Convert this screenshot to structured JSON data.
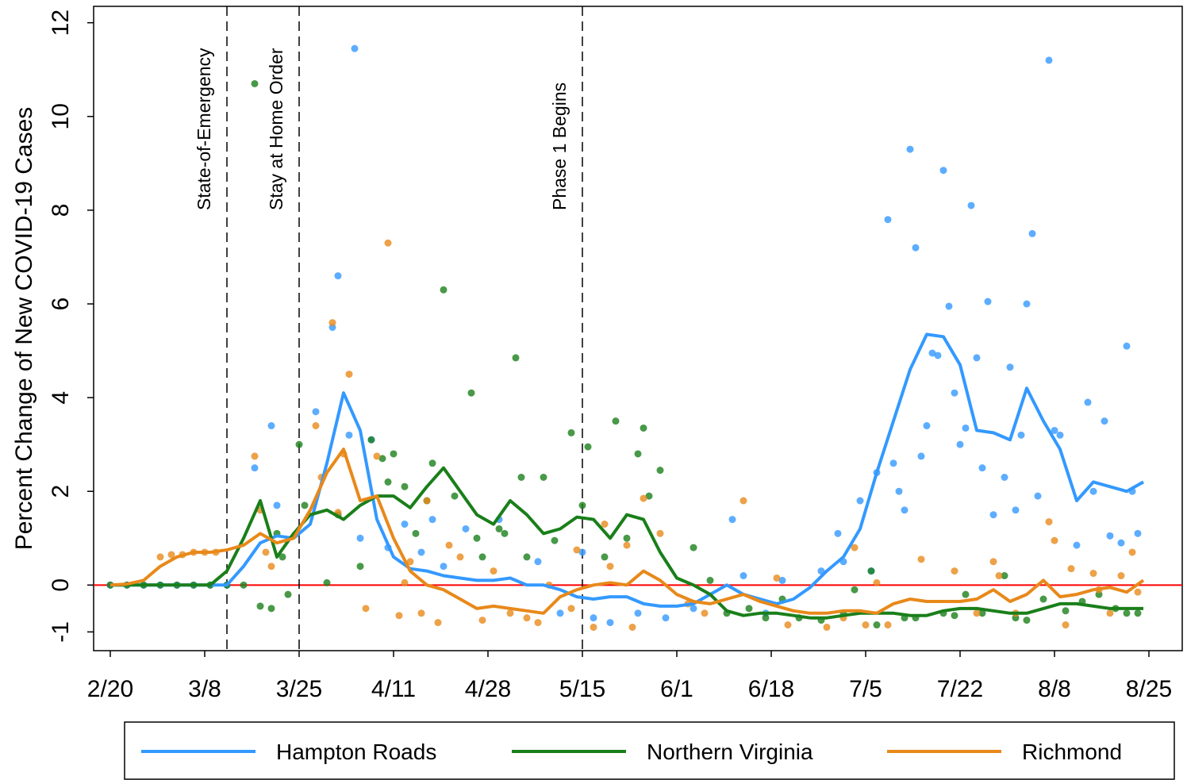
{
  "chart_data": {
    "type": "line_scatter",
    "y_label": "Percent Change of New COVID-19 Cases",
    "xlim": [
      "2/17",
      "8/31"
    ],
    "xticks": [
      "2/20",
      "3/8",
      "3/25",
      "4/11",
      "4/28",
      "5/15",
      "6/1",
      "6/18",
      "7/5",
      "7/22",
      "8/8",
      "8/25"
    ],
    "ylim": [
      -1.4,
      12.35
    ],
    "yticks": [
      -1,
      0,
      2,
      4,
      6,
      8,
      10,
      12
    ],
    "reference_line": {
      "value": 0,
      "color": "#ff0000"
    },
    "events": [
      {
        "x": "3/12",
        "label": "State-of-Emergency"
      },
      {
        "x": "3/25",
        "label": "Stay at Home Order"
      },
      {
        "x": "5/15",
        "label": "Phase 1 Begins"
      }
    ],
    "x": [
      "2/20",
      "2/23",
      "2/26",
      "2/29",
      "3/3",
      "3/6",
      "3/9",
      "3/12",
      "3/15",
      "3/18",
      "3/21",
      "3/24",
      "3/27",
      "3/30",
      "4/2",
      "4/5",
      "4/8",
      "4/11",
      "4/14",
      "4/17",
      "4/20",
      "4/23",
      "4/26",
      "4/29",
      "5/2",
      "5/5",
      "5/8",
      "5/11",
      "5/14",
      "5/17",
      "5/20",
      "5/23",
      "5/26",
      "5/29",
      "6/1",
      "6/4",
      "6/7",
      "6/10",
      "6/13",
      "6/16",
      "6/19",
      "6/22",
      "6/25",
      "6/28",
      "7/1",
      "7/4",
      "7/7",
      "7/10",
      "7/13",
      "7/16",
      "7/19",
      "7/22",
      "7/25",
      "7/28",
      "7/31",
      "8/3",
      "8/6",
      "8/9",
      "8/12",
      "8/15",
      "8/18",
      "8/21",
      "8/24"
    ],
    "series": [
      {
        "name": "Hampton Roads",
        "color": "#3399ff",
        "values": [
          0,
          0,
          0,
          0,
          0,
          0,
          0,
          0,
          0.4,
          0.9,
          1.05,
          1.0,
          1.3,
          2.6,
          4.1,
          3.3,
          1.4,
          0.6,
          0.35,
          0.3,
          0.2,
          0.15,
          0.1,
          0.1,
          0.15,
          0,
          0,
          -0.1,
          -0.25,
          -0.3,
          -0.25,
          -0.25,
          -0.4,
          -0.45,
          -0.45,
          -0.4,
          -0.2,
          0,
          -0.2,
          -0.3,
          -0.4,
          -0.3,
          -0.05,
          0.3,
          0.6,
          1.2,
          2.4,
          3.5,
          4.6,
          5.35,
          5.3,
          4.7,
          3.3,
          3.25,
          3.1,
          4.2,
          3.5,
          2.9,
          1.8,
          2.2,
          2.1,
          2.0,
          2.2
        ],
        "scatter": {
          "x": [
            "2/20",
            "2/23",
            "2/26",
            "2/29",
            "3/3",
            "3/6",
            "3/9",
            "3/12",
            "3/17",
            "3/20",
            "3/21",
            "3/28",
            "3/31",
            "4/1",
            "4/3",
            "4/4",
            "4/5",
            "4/7",
            "4/10",
            "4/13",
            "4/16",
            "4/18",
            "4/20",
            "4/24",
            "4/30",
            "5/7",
            "5/11",
            "5/15",
            "5/17",
            "5/20",
            "5/25",
            "5/30",
            "6/4",
            "6/11",
            "6/13",
            "6/17",
            "6/20",
            "6/27",
            "6/30",
            "7/1",
            "7/4",
            "7/6",
            "7/7",
            "7/9",
            "7/10",
            "7/11",
            "7/12",
            "7/13",
            "7/14",
            "7/15",
            "7/16",
            "7/17",
            "7/18",
            "7/19",
            "7/20",
            "7/21",
            "7/22",
            "7/23",
            "7/24",
            "7/25",
            "7/26",
            "7/27",
            "7/28",
            "7/30",
            "7/31",
            "8/1",
            "8/2",
            "8/3",
            "8/4",
            "8/5",
            "8/7",
            "8/8",
            "8/9",
            "8/12",
            "8/14",
            "8/15",
            "8/17",
            "8/18",
            "8/20",
            "8/21",
            "8/22",
            "8/23"
          ],
          "values": [
            0,
            0,
            0,
            0,
            0,
            0,
            0,
            0,
            2.5,
            3.4,
            1.7,
            3.7,
            5.5,
            6.6,
            3.2,
            11.45,
            1.0,
            3.1,
            0.8,
            1.3,
            0.7,
            1.4,
            0.4,
            1.2,
            1.4,
            0.5,
            -0.6,
            0.7,
            -0.7,
            -0.8,
            -0.6,
            -0.7,
            -0.5,
            1.4,
            0.2,
            -0.6,
            0.1,
            0.3,
            1.1,
            0.5,
            1.8,
            0.3,
            2.4,
            7.8,
            2.6,
            2.0,
            1.6,
            9.3,
            7.2,
            2.75,
            3.4,
            4.95,
            4.9,
            8.85,
            5.95,
            4.1,
            3.0,
            3.35,
            8.1,
            4.85,
            2.5,
            6.05,
            1.5,
            2.3,
            4.65,
            1.6,
            3.2,
            6.0,
            7.5,
            1.9,
            11.2,
            3.3,
            3.2,
            0.85,
            3.9,
            2.0,
            3.5,
            1.05,
            0.9,
            5.1,
            2.0,
            1.1
          ]
        }
      },
      {
        "name": "Northern Virginia",
        "color": "#1a7f1a",
        "values": [
          0,
          0,
          0,
          0,
          0,
          0,
          0,
          0.3,
          1.0,
          1.8,
          0.6,
          1.1,
          1.5,
          1.6,
          1.4,
          1.7,
          1.9,
          1.9,
          1.65,
          2.1,
          2.5,
          2.0,
          1.5,
          1.3,
          1.8,
          1.5,
          1.1,
          1.2,
          1.45,
          1.4,
          1.0,
          1.5,
          1.4,
          0.7,
          0.15,
          0.0,
          -0.2,
          -0.55,
          -0.65,
          -0.6,
          -0.6,
          -0.65,
          -0.7,
          -0.7,
          -0.65,
          -0.6,
          -0.6,
          -0.6,
          -0.65,
          -0.65,
          -0.55,
          -0.5,
          -0.5,
          -0.55,
          -0.6,
          -0.6,
          -0.5,
          -0.4,
          -0.4,
          -0.45,
          -0.5,
          -0.5,
          -0.5
        ],
        "scatter": {
          "x": [
            "2/20",
            "2/23",
            "2/26",
            "2/29",
            "3/3",
            "3/6",
            "3/9",
            "3/12",
            "3/15",
            "3/17",
            "3/18",
            "3/20",
            "3/21",
            "3/22",
            "3/23",
            "3/25",
            "3/26",
            "3/30",
            "4/1",
            "4/5",
            "4/7",
            "4/9",
            "4/10",
            "4/11",
            "4/13",
            "4/15",
            "4/17",
            "4/18",
            "4/20",
            "4/22",
            "4/25",
            "4/26",
            "4/27",
            "4/30",
            "5/1",
            "5/3",
            "5/4",
            "5/5",
            "5/8",
            "5/10",
            "5/13",
            "5/15",
            "5/16",
            "5/19",
            "5/21",
            "5/23",
            "5/25",
            "5/26",
            "5/27",
            "5/29",
            "6/4",
            "6/7",
            "6/10",
            "6/14",
            "6/17",
            "6/20",
            "6/23",
            "6/27",
            "7/1",
            "7/3",
            "7/6",
            "7/7",
            "7/12",
            "7/14",
            "7/19",
            "7/21",
            "7/23",
            "7/26",
            "7/30",
            "8/1",
            "8/3",
            "8/6",
            "8/10",
            "8/13",
            "8/16",
            "8/19",
            "8/21",
            "8/23"
          ],
          "values": [
            0,
            0,
            0,
            0,
            0,
            0,
            0,
            0,
            0,
            10.7,
            -0.45,
            -0.5,
            1.1,
            0.6,
            -0.2,
            3.0,
            1.7,
            0.05,
            1.5,
            0.4,
            3.1,
            2.7,
            2.2,
            2.8,
            2.1,
            1.1,
            1.8,
            2.6,
            6.3,
            1.9,
            4.1,
            1.0,
            0.6,
            1.2,
            1.1,
            4.85,
            2.3,
            0.6,
            2.3,
            0.95,
            3.25,
            1.7,
            2.95,
            0.6,
            3.5,
            1.0,
            2.8,
            3.35,
            1.9,
            2.45,
            0.8,
            0.1,
            -0.6,
            -0.5,
            -0.7,
            -0.3,
            -0.7,
            -0.75,
            -0.6,
            -0.1,
            0.3,
            -0.85,
            -0.7,
            -0.7,
            -0.6,
            -0.65,
            -0.2,
            -0.6,
            0.2,
            -0.7,
            -0.75,
            -0.3,
            -0.55,
            -0.35,
            -0.2,
            -0.5,
            -0.6,
            -0.6
          ]
        }
      },
      {
        "name": "Richmond",
        "color": "#e8891a",
        "values": [
          0,
          0.02,
          0.1,
          0.4,
          0.6,
          0.7,
          0.7,
          0.75,
          0.85,
          1.1,
          0.9,
          1.0,
          1.6,
          2.4,
          2.9,
          1.8,
          1.9,
          1.0,
          0.3,
          0.0,
          -0.1,
          -0.3,
          -0.5,
          -0.45,
          -0.5,
          -0.55,
          -0.6,
          -0.25,
          -0.1,
          0.0,
          0.05,
          0,
          0.3,
          0.1,
          -0.2,
          -0.35,
          -0.4,
          -0.3,
          -0.2,
          -0.35,
          -0.45,
          -0.55,
          -0.6,
          -0.6,
          -0.55,
          -0.55,
          -0.6,
          -0.4,
          -0.3,
          -0.35,
          -0.35,
          -0.35,
          -0.3,
          -0.1,
          -0.35,
          -0.2,
          0.1,
          -0.25,
          -0.2,
          -0.1,
          -0.05,
          -0.15,
          0.1
        ],
        "scatter": {
          "x": [
            "2/29",
            "3/2",
            "3/4",
            "3/6",
            "3/8",
            "3/10",
            "3/17",
            "3/18",
            "3/19",
            "3/20",
            "3/28",
            "3/29",
            "3/31",
            "4/1",
            "4/2",
            "4/3",
            "4/6",
            "4/8",
            "4/10",
            "4/12",
            "4/13",
            "4/14",
            "4/16",
            "4/17",
            "4/19",
            "4/21",
            "4/23",
            "4/27",
            "4/29",
            "5/2",
            "5/5",
            "5/7",
            "5/9",
            "5/13",
            "5/14",
            "5/17",
            "5/19",
            "5/20",
            "5/23",
            "5/24",
            "5/26",
            "5/29",
            "6/3",
            "6/6",
            "6/13",
            "6/19",
            "6/21",
            "6/28",
            "7/1",
            "7/3",
            "7/5",
            "7/7",
            "7/9",
            "7/15",
            "7/21",
            "7/25",
            "7/28",
            "7/29",
            "8/1",
            "8/7",
            "8/8",
            "8/10",
            "8/11",
            "8/15",
            "8/16",
            "8/18",
            "8/20",
            "8/22",
            "8/23"
          ],
          "values": [
            0.6,
            0.65,
            0.65,
            0.7,
            0.7,
            0.7,
            2.75,
            1.6,
            0.7,
            0.4,
            3.4,
            2.3,
            5.6,
            1.55,
            2.8,
            4.5,
            -0.5,
            2.75,
            7.3,
            -0.65,
            0.05,
            0.5,
            -0.6,
            1.8,
            -0.8,
            0.85,
            0.6,
            -0.75,
            0.3,
            -0.6,
            -0.7,
            -0.8,
            0.0,
            -0.5,
            0.75,
            -0.9,
            1.3,
            0.4,
            0.85,
            -0.9,
            1.85,
            1.1,
            -0.4,
            -0.6,
            1.8,
            0.15,
            -0.85,
            -0.9,
            -0.7,
            0.8,
            -0.85,
            0.05,
            -0.85,
            0.55,
            0.3,
            -0.6,
            0.5,
            0.2,
            -0.6,
            1.35,
            0.95,
            -0.85,
            0.35,
            0.25,
            -0.1,
            -0.6,
            0.2,
            0.7,
            -0.15
          ]
        }
      }
    ]
  }
}
